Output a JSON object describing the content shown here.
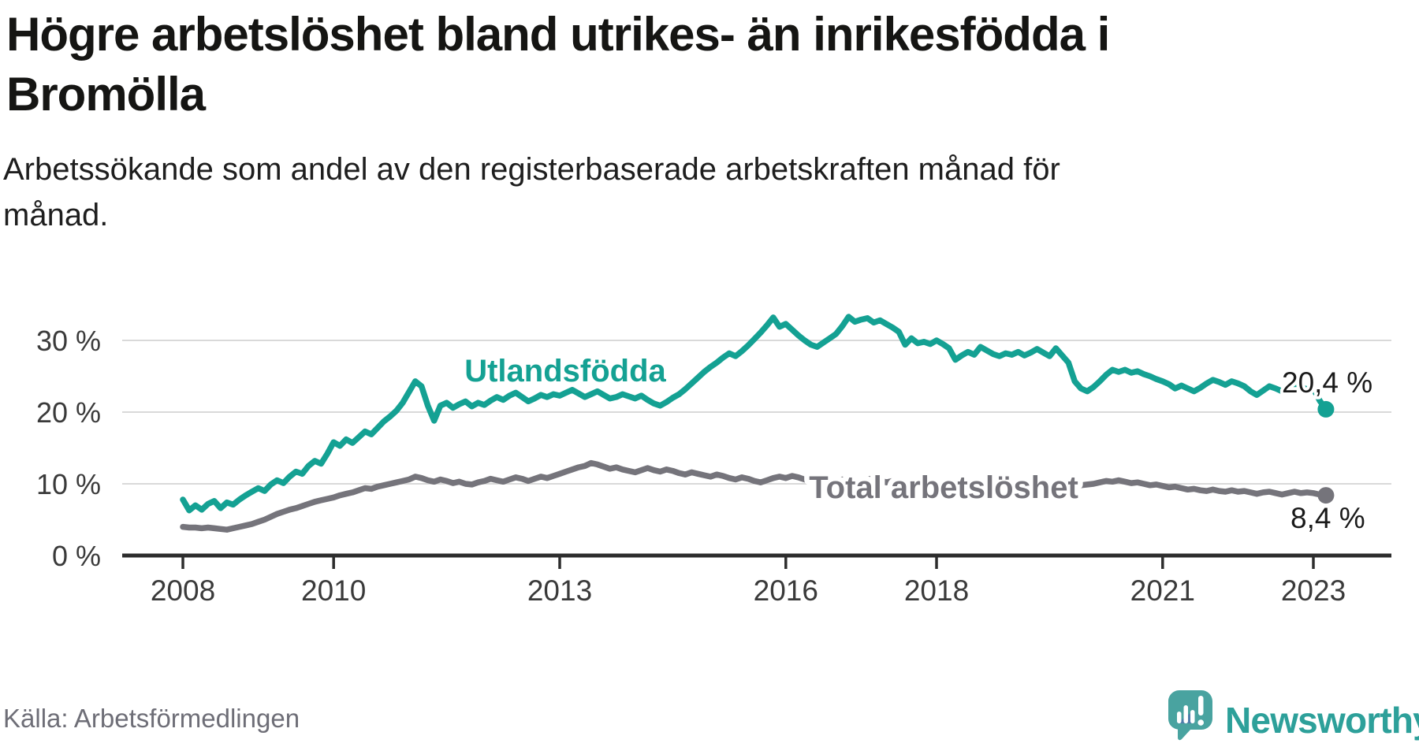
{
  "header": {
    "title_lines": [
      "Högre arbetslöshet bland utrikes- än inrikesfödda i",
      "Bromölla"
    ],
    "subtitle_lines": [
      "Arbetssökande som andel av den registerbaserade arbetskraften månad för",
      "månad."
    ]
  },
  "chart_data": {
    "type": "line",
    "title": "Högre arbetslöshet bland utrikes- än inrikesfödda i Bromölla",
    "subtitle": "Arbetssökande som andel av den registerbaserade arbetskraften månad för månad.",
    "x_frequency": "monthly",
    "x_start": "2008-01",
    "x_end": "2023-03",
    "ylim": [
      0,
      35
    ],
    "grid": true,
    "legend": "inline-labels",
    "y_ticks": [
      {
        "value": 0,
        "label": "0 %"
      },
      {
        "value": 10,
        "label": "10 %"
      },
      {
        "value": 20,
        "label": "20 %"
      },
      {
        "value": 30,
        "label": "30 %"
      }
    ],
    "x_ticks": [
      {
        "year": 2008,
        "label": "2008"
      },
      {
        "year": 2010,
        "label": "2010"
      },
      {
        "year": 2013,
        "label": "2013"
      },
      {
        "year": 2016,
        "label": "2016"
      },
      {
        "year": 2018,
        "label": "2018"
      },
      {
        "year": 2021,
        "label": "2021"
      },
      {
        "year": 2023,
        "label": "2023"
      }
    ],
    "series": [
      {
        "name": "Utlandsfödda",
        "color": "#14a193",
        "end_value": 20.4,
        "end_label": "20,4 %",
        "values": [
          7.8,
          6.3,
          7.0,
          6.4,
          7.2,
          7.6,
          6.6,
          7.4,
          7.1,
          7.8,
          8.4,
          8.9,
          9.4,
          9.0,
          9.9,
          10.5,
          10.1,
          11.0,
          11.7,
          11.4,
          12.5,
          13.2,
          12.8,
          14.2,
          15.8,
          15.3,
          16.2,
          15.7,
          16.5,
          17.3,
          16.9,
          17.8,
          18.7,
          19.4,
          20.2,
          21.3,
          22.8,
          24.3,
          23.6,
          20.9,
          18.8,
          20.9,
          21.3,
          20.6,
          21.1,
          21.5,
          20.8,
          21.3,
          21.0,
          21.6,
          22.1,
          21.7,
          22.3,
          22.7,
          22.1,
          21.5,
          21.9,
          22.4,
          22.1,
          22.5,
          22.3,
          22.7,
          23.1,
          22.6,
          22.1,
          22.5,
          22.9,
          22.4,
          21.9,
          22.1,
          22.5,
          22.2,
          21.9,
          22.3,
          21.7,
          21.2,
          20.9,
          21.4,
          22.0,
          22.5,
          23.2,
          24.0,
          24.8,
          25.6,
          26.3,
          26.9,
          27.6,
          28.2,
          27.8,
          28.5,
          29.3,
          30.2,
          31.1,
          32.1,
          33.2,
          31.9,
          32.3,
          31.5,
          30.7,
          30.0,
          29.4,
          29.1,
          29.7,
          30.3,
          30.9,
          32.0,
          33.3,
          32.6,
          32.9,
          33.1,
          32.5,
          32.8,
          32.3,
          31.8,
          31.2,
          29.4,
          30.3,
          29.6,
          29.8,
          29.5,
          30.0,
          29.5,
          28.9,
          27.3,
          27.9,
          28.4,
          28.0,
          29.1,
          28.6,
          28.1,
          27.8,
          28.2,
          28.0,
          28.4,
          27.9,
          28.3,
          28.8,
          28.3,
          27.8,
          28.9,
          27.9,
          26.9,
          24.3,
          23.3,
          22.9,
          23.5,
          24.3,
          25.2,
          25.9,
          25.6,
          25.9,
          25.5,
          25.7,
          25.3,
          25.0,
          24.6,
          24.3,
          23.9,
          23.3,
          23.7,
          23.3,
          22.9,
          23.4,
          24.0,
          24.5,
          24.2,
          23.8,
          24.3,
          24.0,
          23.6,
          22.9,
          22.4,
          23.0,
          23.6,
          23.3,
          22.9,
          23.3,
          23.9,
          23.5,
          23.2,
          23.3,
          21.6,
          20.4
        ]
      },
      {
        "name": "Total arbetslöshet",
        "color": "#75747b",
        "end_value": 8.4,
        "end_label": "8,4 %",
        "values": [
          4.0,
          3.9,
          3.9,
          3.8,
          3.9,
          3.8,
          3.7,
          3.6,
          3.8,
          4.0,
          4.2,
          4.4,
          4.7,
          5.0,
          5.4,
          5.8,
          6.1,
          6.4,
          6.6,
          6.9,
          7.2,
          7.5,
          7.7,
          7.9,
          8.1,
          8.4,
          8.6,
          8.8,
          9.1,
          9.4,
          9.3,
          9.6,
          9.8,
          10.0,
          10.2,
          10.4,
          10.6,
          11.0,
          10.8,
          10.5,
          10.3,
          10.6,
          10.4,
          10.1,
          10.3,
          10.0,
          9.9,
          10.2,
          10.4,
          10.7,
          10.5,
          10.3,
          10.6,
          10.9,
          10.7,
          10.4,
          10.7,
          11.0,
          10.8,
          11.1,
          11.4,
          11.7,
          12.0,
          12.3,
          12.5,
          12.9,
          12.7,
          12.4,
          12.1,
          12.3,
          12.0,
          11.8,
          11.6,
          11.9,
          12.2,
          11.9,
          11.7,
          12.0,
          11.8,
          11.5,
          11.3,
          11.6,
          11.4,
          11.2,
          11.0,
          11.3,
          11.1,
          10.8,
          10.6,
          10.9,
          10.7,
          10.4,
          10.2,
          10.5,
          10.8,
          11.0,
          10.8,
          11.1,
          10.9,
          10.6,
          10.4,
          10.7,
          10.5,
          10.2,
          10.4,
          10.6,
          10.3,
          10.5,
          10.3,
          10.6,
          10.8,
          10.5,
          10.2,
          10.4,
          10.6,
          10.3,
          10.0,
          10.2,
          9.9,
          10.1,
          9.9,
          10.1,
          9.8,
          9.6,
          9.8,
          9.5,
          9.7,
          9.9,
          9.6,
          9.4,
          9.6,
          9.3,
          9.5,
          9.7,
          9.4,
          9.6,
          9.8,
          9.5,
          9.3,
          9.5,
          9.2,
          9.4,
          9.6,
          9.8,
          9.9,
          10.0,
          10.2,
          10.4,
          10.3,
          10.5,
          10.3,
          10.1,
          10.2,
          10.0,
          9.8,
          9.9,
          9.7,
          9.5,
          9.6,
          9.4,
          9.2,
          9.3,
          9.1,
          9.0,
          9.2,
          9.0,
          8.9,
          9.1,
          8.9,
          9.0,
          8.8,
          8.6,
          8.8,
          8.9,
          8.7,
          8.5,
          8.7,
          8.9,
          8.7,
          8.8,
          8.7,
          8.5,
          8.4
        ]
      }
    ]
  },
  "footer": {
    "source": "Källa: Arbetsförmedlingen",
    "brand": "Newsworthy"
  },
  "colors": {
    "series_teal": "#14a193",
    "series_gray": "#75747b",
    "brand_teal": "#2da09a",
    "brand_icon": "#49a3a0",
    "brand_icon_accent": "#4d7cab",
    "grid": "#d9d9d9",
    "axis": "#2d2d2d",
    "title_text": "#151513",
    "annotation_text": "#1a1a1a",
    "source_text": "#6e6e77"
  }
}
